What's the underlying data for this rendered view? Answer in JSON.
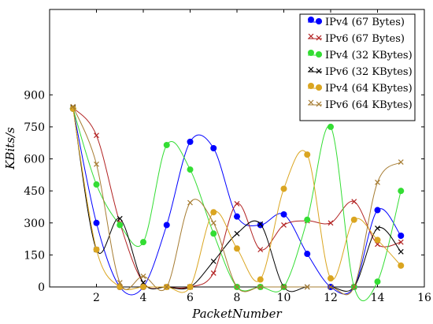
{
  "chart_data": {
    "type": "line",
    "xlabel": "PacketNumber",
    "ylabel": "KBits/s",
    "xlim": [
      0,
      16
    ],
    "ylim": [
      0,
      1300
    ],
    "xticks": [
      "2",
      "4",
      "6",
      "8",
      "10",
      "12",
      "14",
      "16"
    ],
    "yticks": [
      "0",
      "150",
      "300",
      "450",
      "600",
      "750",
      "900"
    ],
    "legend_position": "top-right",
    "x": [
      1,
      2,
      3,
      4,
      5,
      6,
      7,
      8,
      9,
      10,
      11,
      12,
      13,
      14,
      15
    ],
    "series": [
      {
        "name": "IPv4 (67 Bytes)",
        "color": "#0000ff",
        "marker": "circle",
        "values": [
          835,
          300,
          0,
          0,
          290,
          680,
          650,
          330,
          290,
          340,
          155,
          0,
          0,
          360,
          240
        ]
      },
      {
        "name": "IPv6 (67 Bytes)",
        "color": "#b22222",
        "marker": "x",
        "values": [
          840,
          710,
          300,
          20,
          0,
          0,
          65,
          390,
          175,
          290,
          310,
          300,
          400,
          200,
          210
        ]
      },
      {
        "name": "IPv4 (32 KBytes)",
        "color": "#33dd33",
        "marker": "circle",
        "values": [
          835,
          480,
          290,
          210,
          665,
          550,
          250,
          0,
          0,
          0,
          315,
          750,
          0,
          25,
          450
        ]
      },
      {
        "name": "IPv6 (32 KBytes)",
        "color": "#000000",
        "marker": "x",
        "values": [
          840,
          175,
          320,
          20,
          0,
          0,
          120,
          250,
          295,
          0,
          0,
          0,
          0,
          275,
          165
        ]
      },
      {
        "name": "IPv4 (64 KBytes)",
        "color": "#daa520",
        "marker": "circle",
        "values": [
          835,
          175,
          0,
          0,
          0,
          0,
          350,
          180,
          35,
          460,
          620,
          40,
          315,
          220,
          100
        ]
      },
      {
        "name": "IPv6 (64 KBytes)",
        "color": "#a67c32",
        "marker": "x",
        "values": [
          845,
          575,
          20,
          50,
          0,
          395,
          300,
          0,
          0,
          0,
          0,
          0,
          0,
          490,
          585
        ]
      }
    ]
  }
}
